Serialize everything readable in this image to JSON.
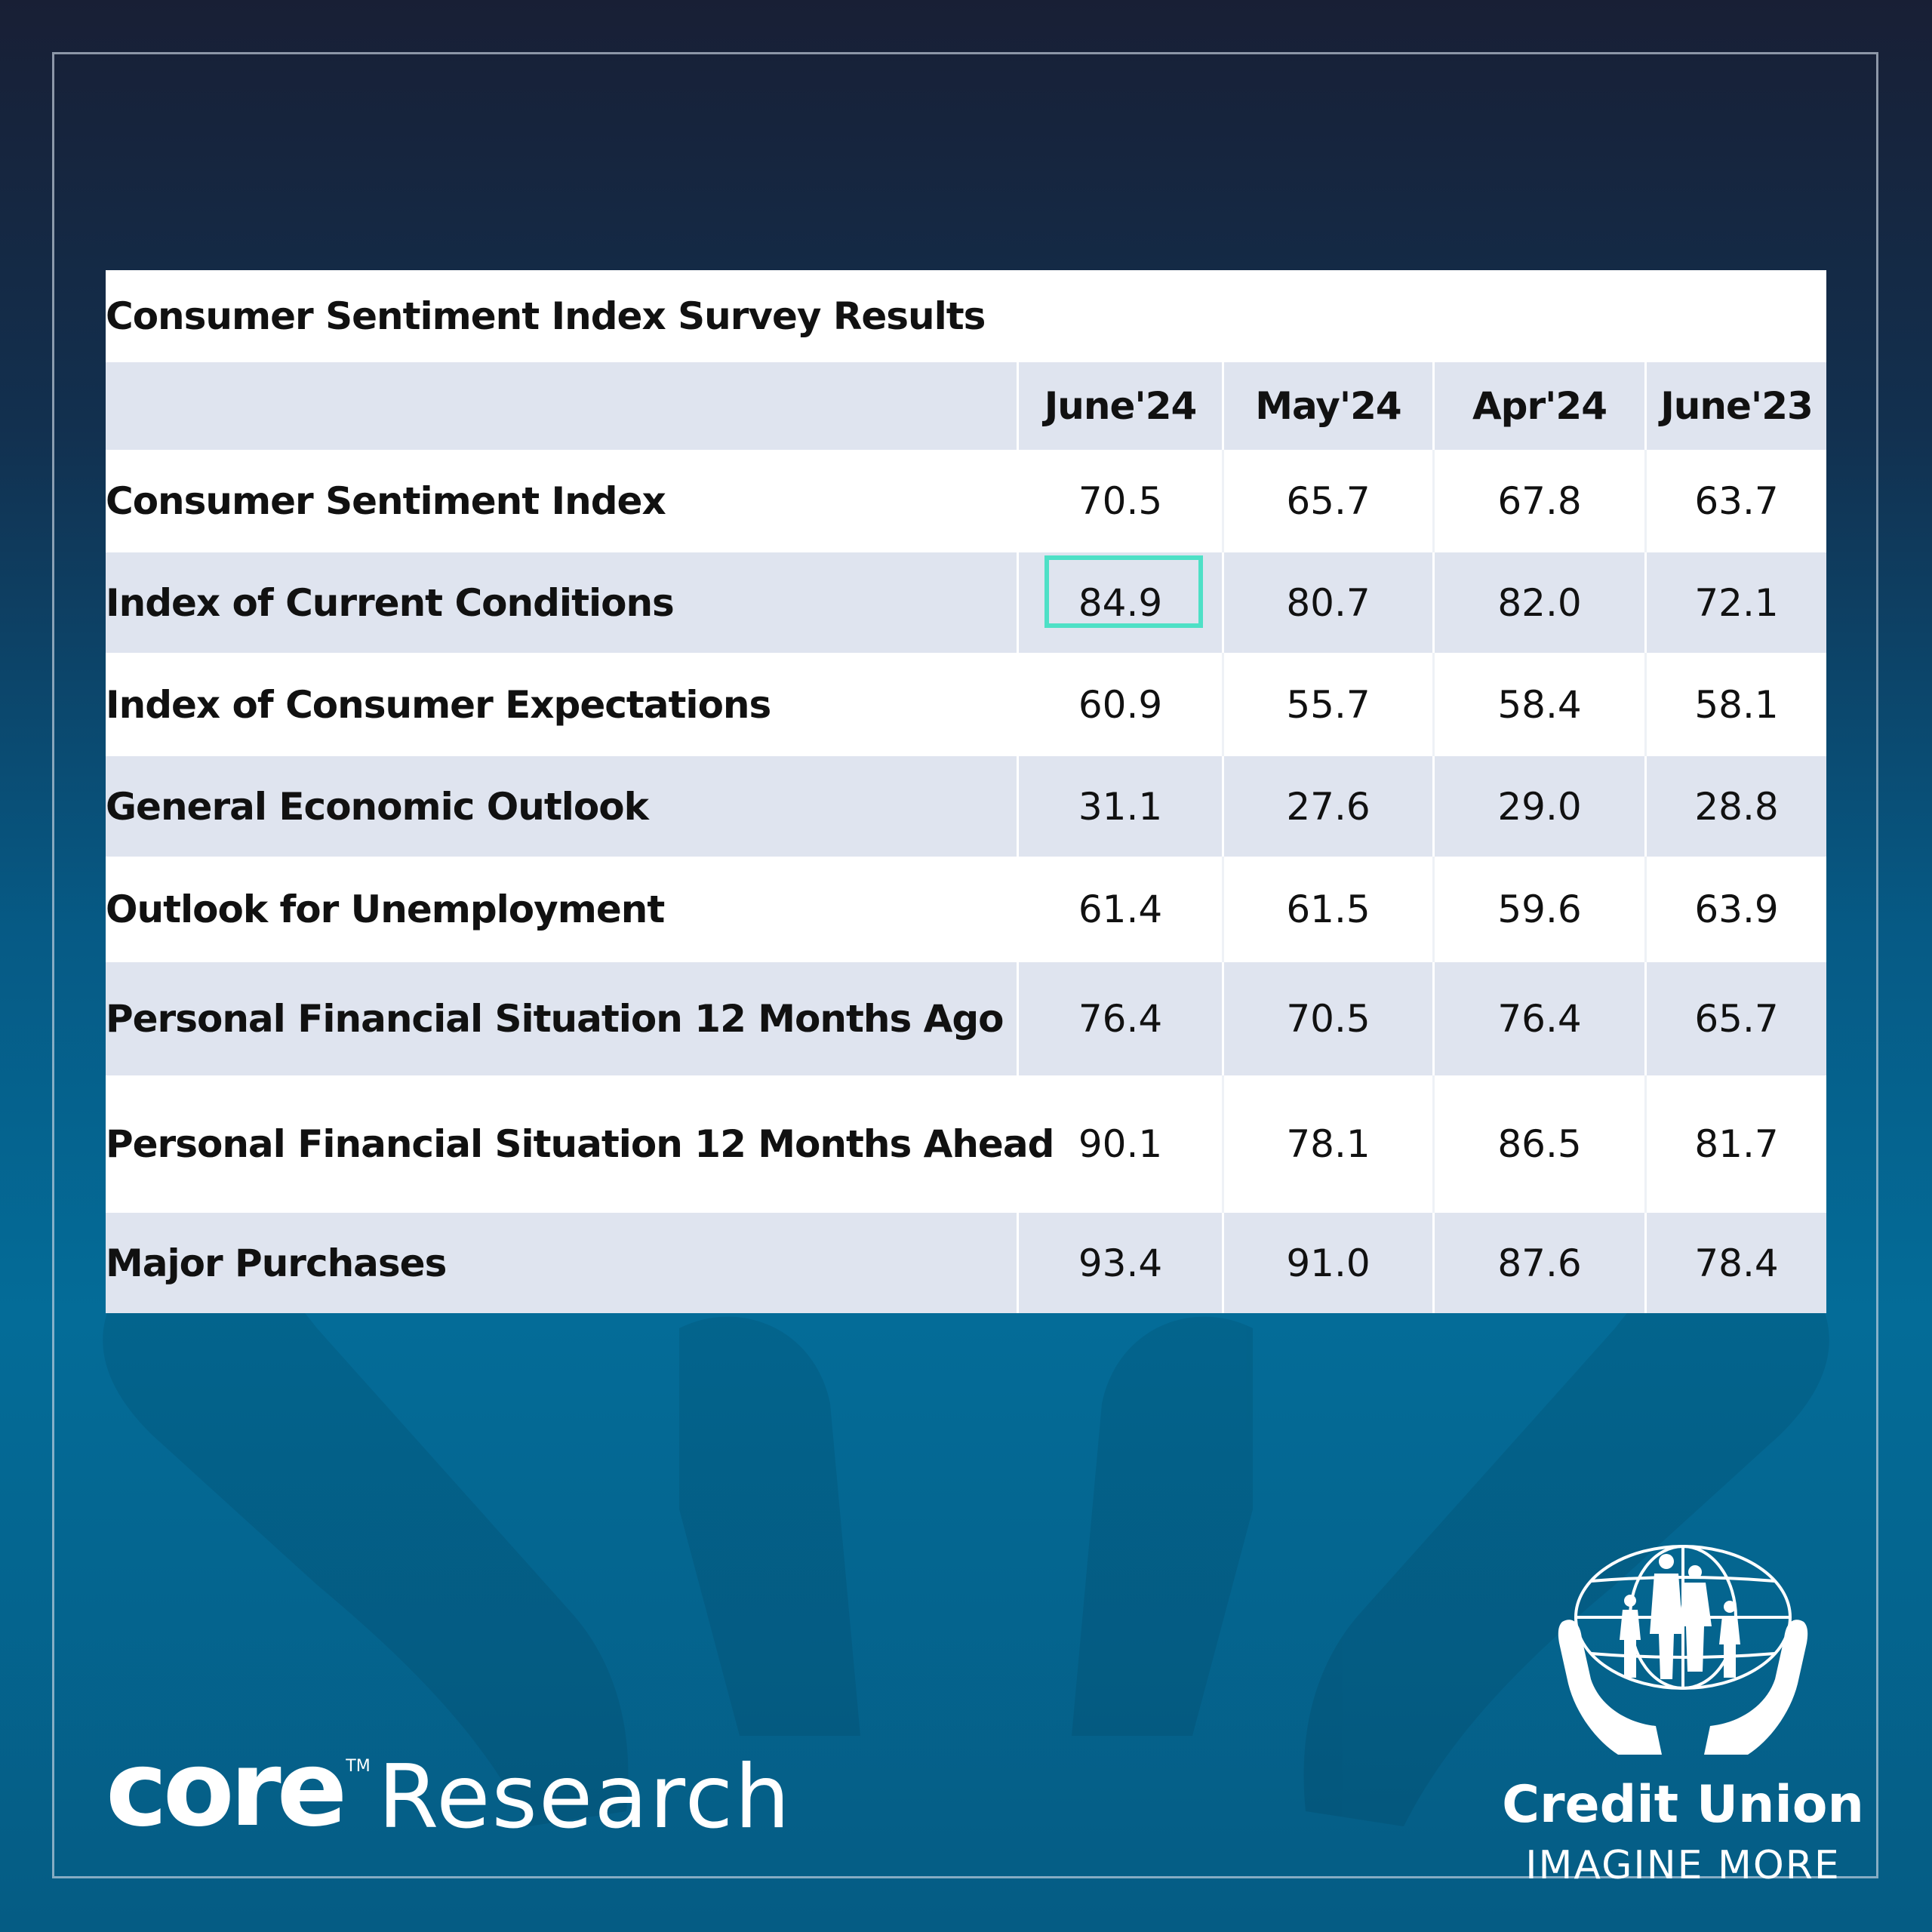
{
  "brand": {
    "core_word": "core",
    "core_tm": "TM",
    "research_word": "Research",
    "credit_union_name": "Credit Union",
    "credit_union_tagline": "IMAGINE MORE"
  },
  "colors": {
    "highlight": "#4ee0c6",
    "row_shade": "#dfe4ef"
  },
  "chart_data": {
    "type": "table",
    "title": "Consumer Sentiment Index Survey Results",
    "columns": [
      "June'24",
      "May'24",
      "Apr'24",
      "June'23"
    ],
    "highlighted_cell": {
      "row": 0,
      "column": 0
    },
    "rows": [
      {
        "label": "Consumer Sentiment Index",
        "values": [
          "70.5",
          "65.7",
          "67.8",
          "63.7"
        ]
      },
      {
        "label": "Index of Current Conditions",
        "values": [
          "84.9",
          "80.7",
          "82.0",
          "72.1"
        ]
      },
      {
        "label": "Index of Consumer Expectations",
        "values": [
          "60.9",
          "55.7",
          "58.4",
          "58.1"
        ]
      },
      {
        "label": "General Economic Outlook",
        "values": [
          "31.1",
          "27.6",
          "29.0",
          "28.8"
        ]
      },
      {
        "label": "Outlook for Unemployment",
        "values": [
          "61.4",
          "61.5",
          "59.6",
          "63.9"
        ]
      },
      {
        "label": "Personal Financial Situation 12 Months Ago",
        "values": [
          "76.4",
          "70.5",
          "76.4",
          "65.7"
        ]
      },
      {
        "label": "Personal Financial Situation 12 Months Ahead",
        "values": [
          "90.1",
          "78.1",
          "86.5",
          "81.7"
        ]
      },
      {
        "label": "Major Purchases",
        "values": [
          "93.4",
          "91.0",
          "87.6",
          "78.4"
        ]
      }
    ]
  }
}
